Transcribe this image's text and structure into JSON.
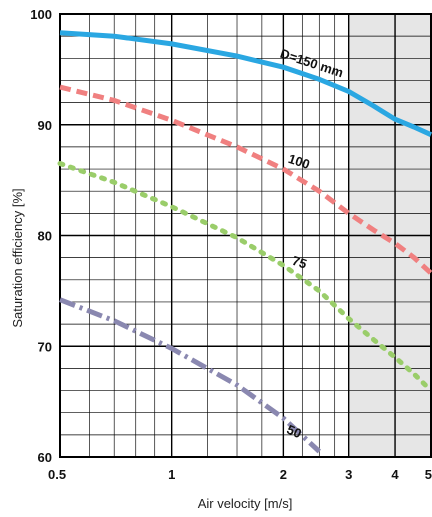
{
  "chart_data": {
    "type": "line",
    "xlabel": "Air velocity [m/s]",
    "ylabel": "Saturation efficiency  [%]",
    "xscale": "log",
    "xlim": [
      0.5,
      5
    ],
    "ylim": [
      60,
      100
    ],
    "x_ticks": [
      "0.5",
      "1",
      "2",
      "3",
      "4",
      "5"
    ],
    "y_ticks": [
      "60",
      "70",
      "80",
      "90",
      "100"
    ],
    "grid": true,
    "shaded_region": {
      "x_from": 3,
      "x_to": 5,
      "color": "#e6e6e6"
    },
    "series": [
      {
        "name": "D=150 mm",
        "color": "#2aa7e2",
        "style": "solid",
        "x": [
          0.5,
          0.7,
          1,
          1.5,
          2,
          2.5,
          3,
          3.5,
          4,
          4.5,
          5
        ],
        "y": [
          98.3,
          98.0,
          97.3,
          96.2,
          95.2,
          94.1,
          93.0,
          91.7,
          90.5,
          89.8,
          89.1
        ]
      },
      {
        "name": "100",
        "color": "#f08080",
        "style": "dashed",
        "x": [
          0.5,
          0.7,
          1,
          1.5,
          2,
          2.5,
          3,
          3.5,
          4,
          4.5,
          5
        ],
        "y": [
          93.4,
          92.2,
          90.4,
          88.0,
          86.0,
          84.0,
          82.0,
          80.5,
          79.3,
          78.0,
          76.6
        ]
      },
      {
        "name": "75",
        "color": "#9acd6a",
        "style": "dotted",
        "x": [
          0.5,
          0.7,
          1,
          1.5,
          2,
          2.5,
          3,
          3.5,
          4,
          4.5,
          5
        ],
        "y": [
          86.5,
          84.8,
          82.6,
          79.8,
          77.3,
          75.0,
          72.5,
          70.6,
          69.0,
          67.5,
          66.0
        ]
      },
      {
        "name": "50",
        "color": "#8a88b0",
        "style": "dashdot",
        "x": [
          0.5,
          0.7,
          1,
          1.5,
          2,
          2.5
        ],
        "y": [
          74.2,
          72.3,
          69.8,
          66.5,
          63.5,
          60.5
        ]
      }
    ]
  }
}
